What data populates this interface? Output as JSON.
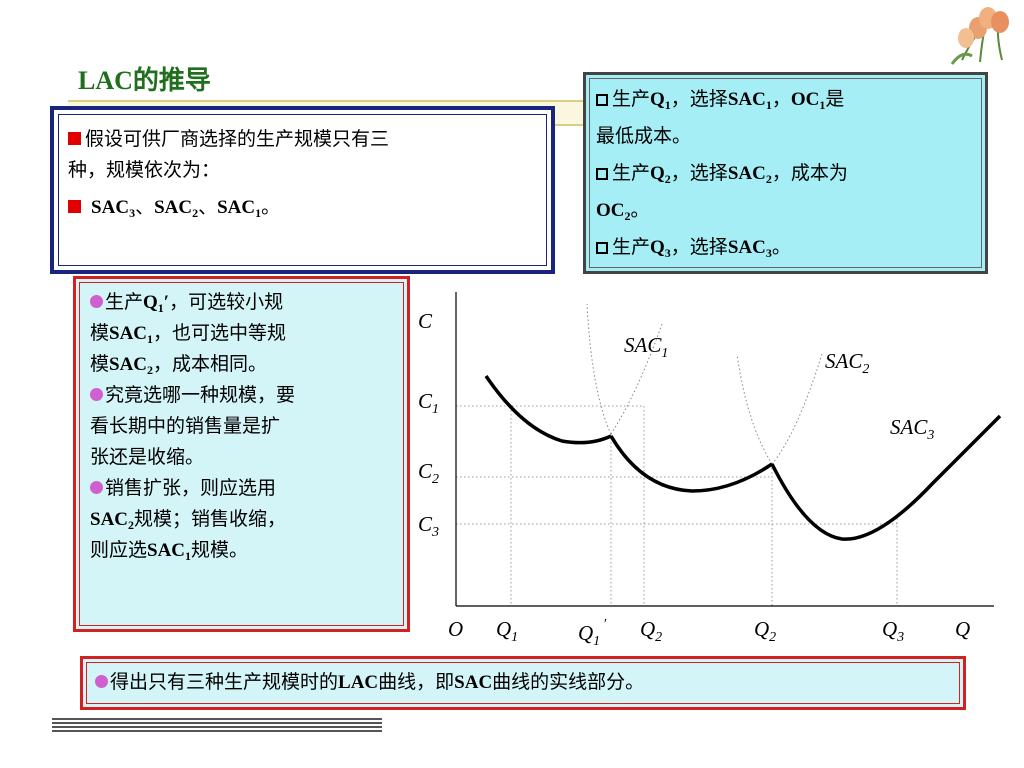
{
  "title": "LAC的推导",
  "assumption": {
    "line1_prefix": "假设可供厂商选择的生产规模只有三",
    "line2": "种，规模依次为：",
    "sac3": "SAC",
    "sub3": "3",
    "sep1": "、",
    "sac2": "SAC",
    "sub2": "2",
    "sep2": "、",
    "sac1": "SAC",
    "sub1": "1",
    "end": "。"
  },
  "produce": {
    "l1_a": "生产",
    "l1_q": "Q",
    "l1_qs": "1",
    "l1_b": "，选择",
    "l1_sac": "SAC",
    "l1_sacs": "1",
    "l1_c": "，",
    "l1_oc": "OC",
    "l1_ocs": "1",
    "l1_d": "是",
    "l2": "最低成本。",
    "l3_a": "生产",
    "l3_q": "Q",
    "l3_qs": "2",
    "l3_b": "，选择",
    "l3_sac": "SAC",
    "l3_sacs": "2",
    "l3_c": "，成本为",
    "l4_oc": "OC",
    "l4_ocs": "2",
    "l4_end": "。",
    "l5_a": "生产",
    "l5_q": "Q",
    "l5_qs": "3",
    "l5_b": "，选择",
    "l5_sac": "SAC",
    "l5_sacs": "3",
    "l5_end": "。"
  },
  "explain": {
    "p1_a": "生产",
    "p1_q": "Q",
    "p1_qs": "1",
    "p1_prime": "′",
    "p1_b": "，可选较小规",
    "p1_c": "模",
    "p1_sac1": "SAC",
    "p1_sac1s": "1",
    "p1_d": "，也可选中等规",
    "p1_e": "模",
    "p1_sac2": "SAC",
    "p1_sac2s": "2",
    "p1_f": "，成本相同。",
    "p2_a": "究竟选哪一种规模，要",
    "p2_b": "看长期中的销售量是扩",
    "p2_c": "张还是收缩。",
    "p3_a": "销售扩张，则应选用",
    "p3_sac": "SAC",
    "p3_sacs": "2",
    "p3_b": "规模；销售收缩，",
    "p3_c": "则应选",
    "p3_sac1": "SAC",
    "p3_sac1s": "1",
    "p3_d": "规模。"
  },
  "conclusion": {
    "a": "得出只有三种生产规模时的",
    "lac": "LAC",
    "b": "曲线，即",
    "sac": "SAC",
    "c": "曲线的实线部分。"
  },
  "chart_data": {
    "type": "line",
    "xlabel": "Q",
    "ylabel": "C",
    "origin_label": "O",
    "x_ticks": [
      {
        "label": "Q",
        "sub": "1",
        "prime": false
      },
      {
        "label": "Q",
        "sub": "1",
        "prime": true
      },
      {
        "label": "Q",
        "sub": "2",
        "prime": false
      },
      {
        "label": "Q",
        "sub": "2",
        "prime": false
      },
      {
        "label": "Q",
        "sub": "3",
        "prime": false
      }
    ],
    "y_ticks": [
      {
        "label": "C",
        "sub": "1"
      },
      {
        "label": "C",
        "sub": "2"
      },
      {
        "label": "C",
        "sub": "3"
      }
    ],
    "series": [
      {
        "name": "SAC",
        "sub": "1"
      },
      {
        "name": "SAC",
        "sub": "2"
      },
      {
        "name": "SAC",
        "sub": "3"
      }
    ]
  },
  "colors": {
    "title": "#1f6f1f",
    "navy_border": "#1a237e",
    "red_border": "#d42020",
    "cyan_fill": "#a5eef5",
    "light_cyan": "#d4f5f8",
    "bullet_dot": "#d060d0",
    "bullet_square": "#e00000"
  }
}
